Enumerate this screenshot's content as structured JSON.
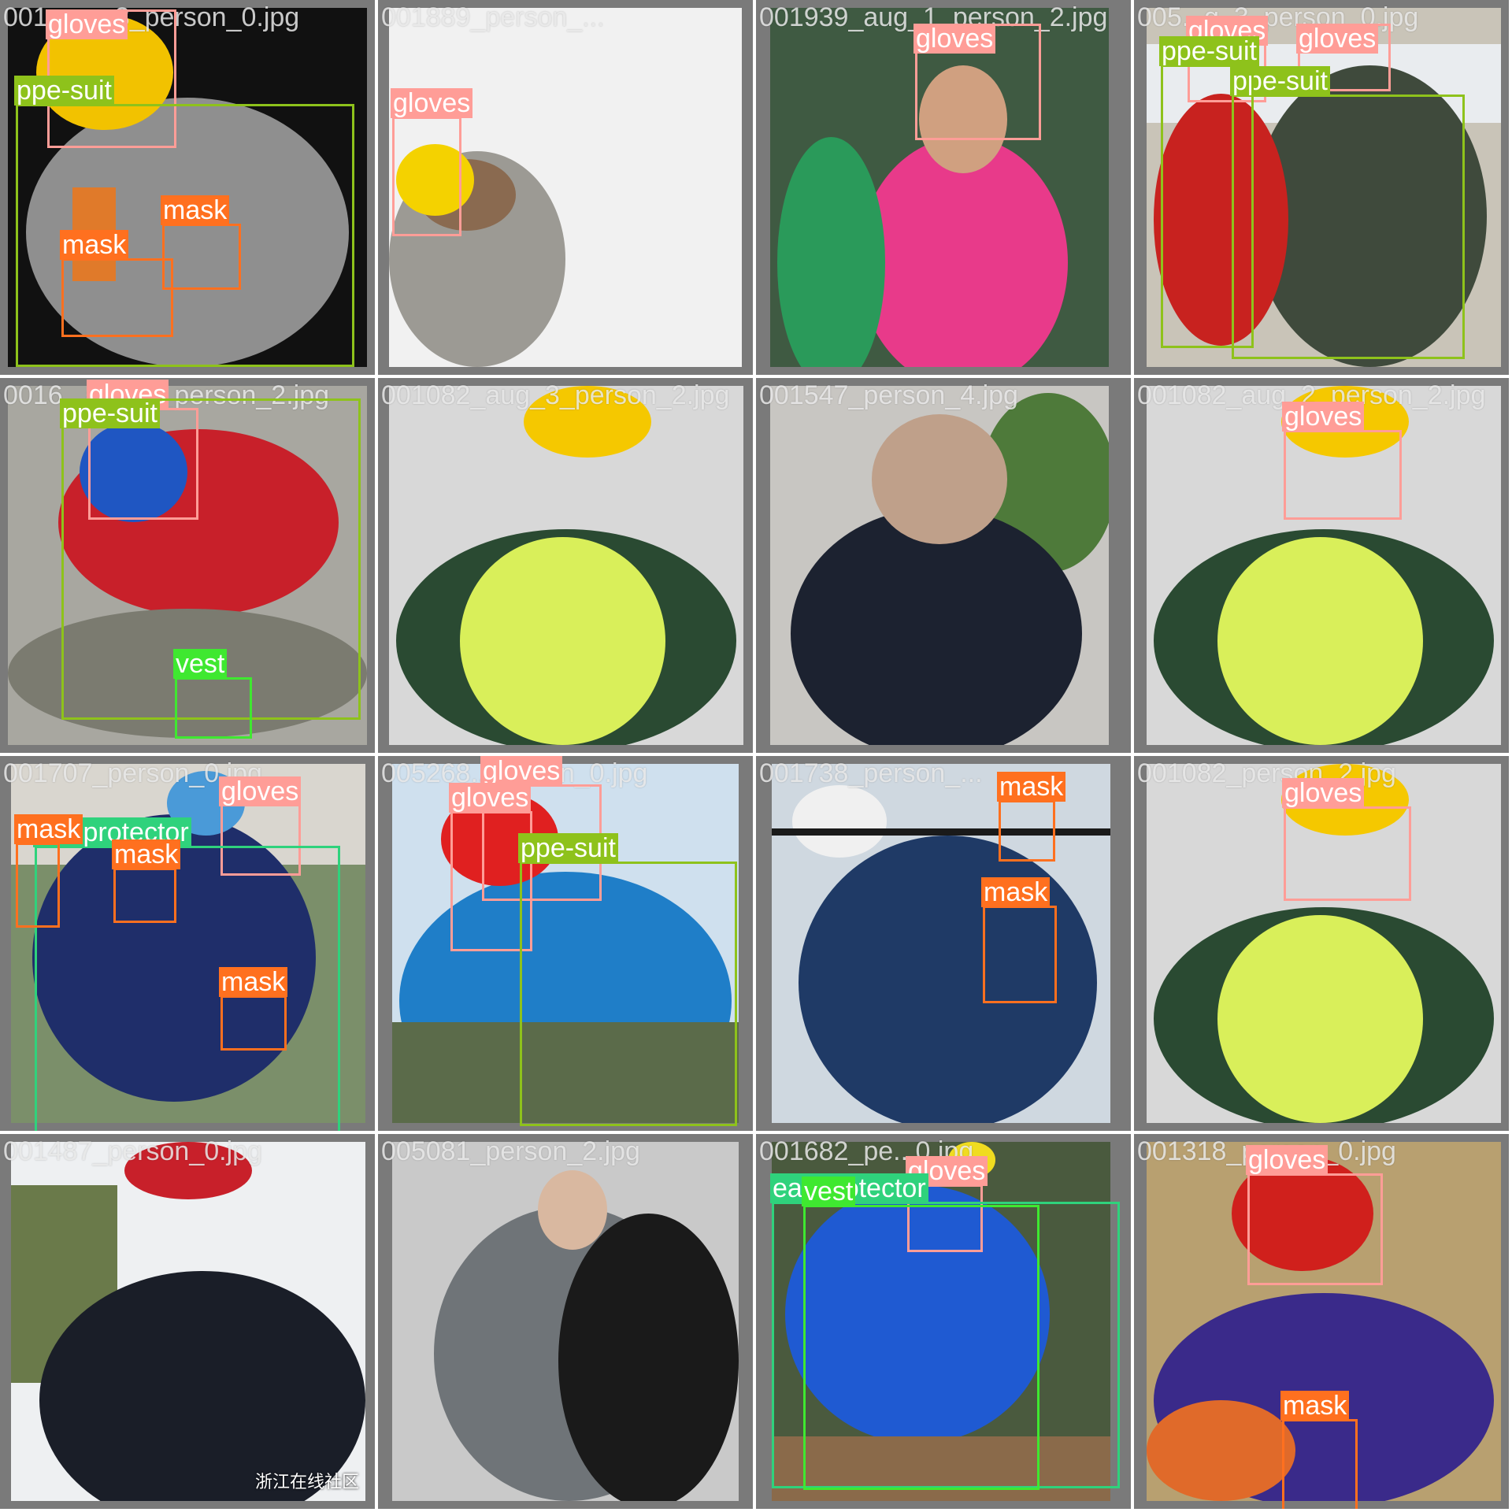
{
  "grid": {
    "rows": 4,
    "cols": 4
  },
  "class_colors": {
    "gloves": "#ff9d97",
    "ppe-suit": "#8ec21b",
    "mask": "#ff701f",
    "vest": "#3fe830",
    "ear-protector": "#2fd27c"
  },
  "tiles": [
    {
      "filename": "001...ug_3_person_0.jpg",
      "scene": [
        "#111111",
        "#8f8f8f",
        "#e07a2a",
        "#f2c200"
      ],
      "detections": [
        {
          "label": "gloves"
        },
        {
          "label": "ppe-suit"
        },
        {
          "label": "mask"
        },
        {
          "label": "mask"
        }
      ]
    },
    {
      "filename": "001889_person_...",
      "scene": [
        "#f1f1f1",
        "#9c9a94",
        "#f4d200",
        "#8a6a50"
      ],
      "detections": [
        {
          "label": "gloves"
        }
      ]
    },
    {
      "filename": "001939_aug_1_person_2.jpg",
      "scene": [
        "#3f5a42",
        "#e83a8a",
        "#2a9a5a",
        "#d0a080"
      ],
      "detections": [
        {
          "label": "gloves"
        }
      ]
    },
    {
      "filename": "005...g_3_person_0.jpg",
      "scene": [
        "#c9c4b8",
        "#3f4a3c",
        "#c8221f",
        "#e9ecef"
      ],
      "detections": [
        {
          "label": "gloves"
        },
        {
          "label": "gloves"
        },
        {
          "label": "ppe-suit"
        },
        {
          "label": "ppe-suit"
        }
      ]
    },
    {
      "filename": "0016...aug_2_person_2.jpg",
      "scene": [
        "#a8a7a0",
        "#c8202a",
        "#1f56c2",
        "#7b7b70"
      ],
      "detections": [
        {
          "label": "gloves"
        },
        {
          "label": "ppe-suit"
        },
        {
          "label": "vest"
        }
      ]
    },
    {
      "filename": "001082_aug_3_person_2.jpg",
      "scene": [
        "#d8d8d8",
        "#2a4a32",
        "#d9ef5a",
        "#f5c800"
      ],
      "detections": []
    },
    {
      "filename": "001547_person_4.jpg",
      "scene": [
        "#c8c6c2",
        "#1c2230",
        "#bfa08a",
        "#4e7a3a"
      ],
      "detections": []
    },
    {
      "filename": "001082_aug_2_person_2.jpg",
      "scene": [
        "#d8d8d8",
        "#2a4a32",
        "#d9ef5a",
        "#f5c800"
      ],
      "detections": [
        {
          "label": "gloves"
        }
      ]
    },
    {
      "filename": "001707_person_0.jpg",
      "scene": [
        "#7b8f6a",
        "#1f2e6a",
        "#4a9ad8",
        "#d9d6cf"
      ],
      "detections": [
        {
          "label": "gloves"
        },
        {
          "label": "ear-protector"
        },
        {
          "label": "mask"
        },
        {
          "label": "mask"
        },
        {
          "label": "mask"
        }
      ]
    },
    {
      "filename": "005268...person_0.jpg",
      "scene": [
        "#cfe0ee",
        "#1f7ec8",
        "#e02020",
        "#5b6b4a"
      ],
      "detections": [
        {
          "label": "gloves"
        },
        {
          "label": "gloves"
        },
        {
          "label": "ppe-suit"
        }
      ]
    },
    {
      "filename": "001738_person_...",
      "scene": [
        "#cfd8e0",
        "#1f3a66",
        "#f0f0f0",
        "#1a1a1a"
      ],
      "detections": [
        {
          "label": "mask"
        },
        {
          "label": "mask"
        }
      ]
    },
    {
      "filename": "001082_person_2.jpg",
      "scene": [
        "#d8d8d8",
        "#2a4a32",
        "#d9ef5a",
        "#f5c800"
      ],
      "detections": [
        {
          "label": "gloves"
        }
      ]
    },
    {
      "filename": "001487_person_0.jpg",
      "scene": [
        "#eef0f2",
        "#1a1e28",
        "#c8202a",
        "#6a7a4a"
      ],
      "watermark": "浙江在线社区",
      "detections": []
    },
    {
      "filename": "005081_person_2.jpg",
      "scene": [
        "#c9c9c9",
        "#6f7478",
        "#1a1a1a",
        "#d9b8a0"
      ],
      "detections": []
    },
    {
      "filename": "001682_pe...0.jpg",
      "scene": [
        "#4a5a3e",
        "#1f5ad2",
        "#8a6a4a",
        "#f0dc20"
      ],
      "detections": [
        {
          "label": "gloves"
        },
        {
          "label": "ear-protector"
        },
        {
          "label": "vest"
        }
      ]
    },
    {
      "filename": "001318_person_0.jpg",
      "scene": [
        "#b8a070",
        "#3a2a8a",
        "#d0201c",
        "#e06a2a"
      ],
      "detections": [
        {
          "label": "gloves"
        },
        {
          "label": "mask"
        }
      ]
    }
  ]
}
